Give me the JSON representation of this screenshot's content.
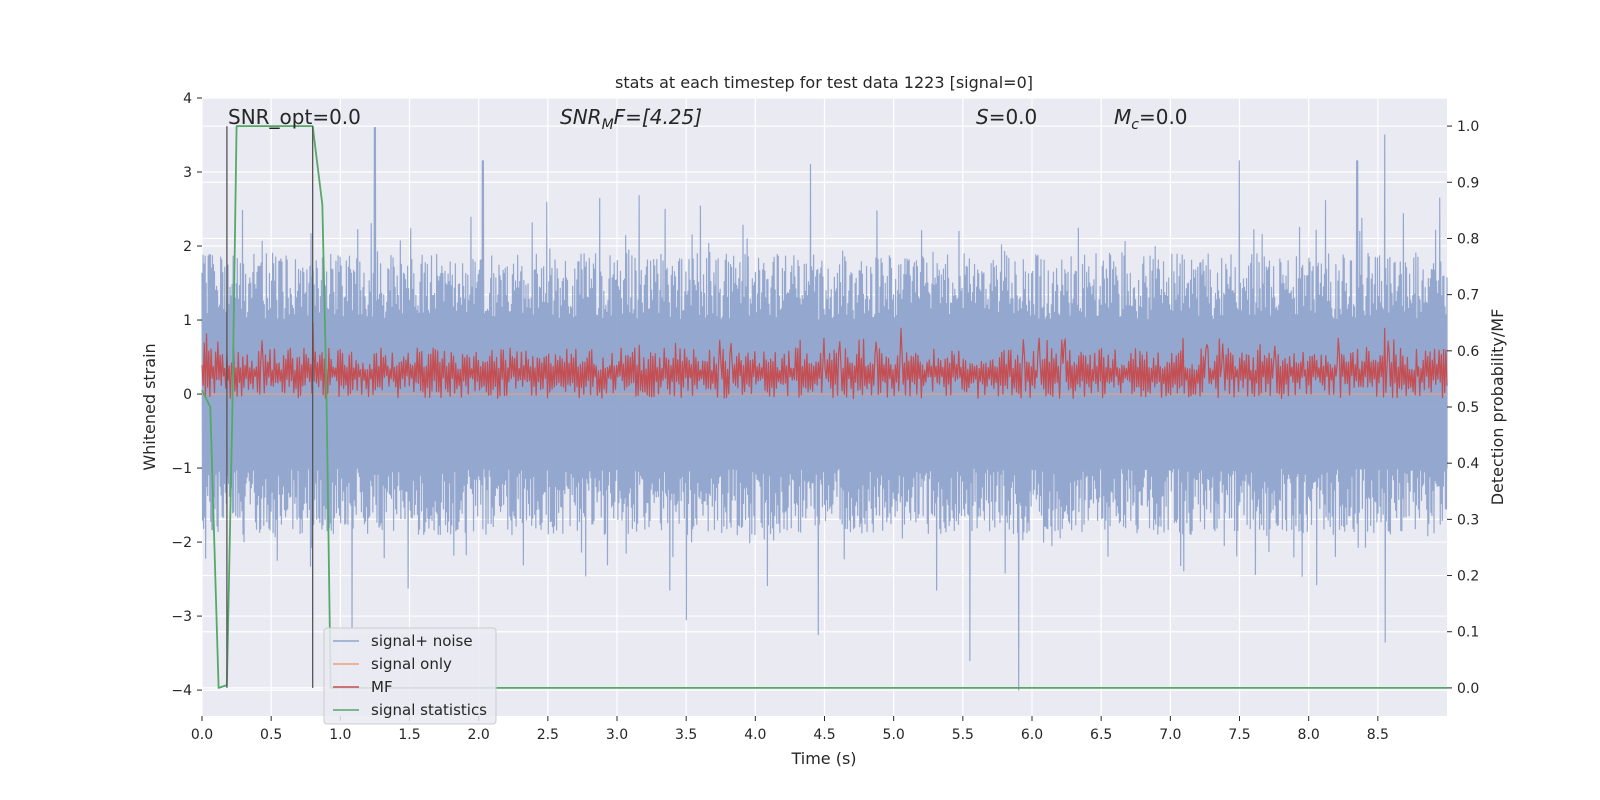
{
  "chart_data": {
    "type": "line",
    "title": "stats at each timestep for test data 1223 [signal=0]",
    "xlabel": "Time (s)",
    "ylabel_left": "Whitened strain",
    "ylabel_right": "Detection probability/MF",
    "xlim": [
      0.0,
      9.0
    ],
    "ylim_left": [
      -4.35,
      4.0
    ],
    "ylim_right": [
      -0.05,
      1.05
    ],
    "xticks": [
      0.0,
      0.5,
      1.0,
      1.5,
      2.0,
      2.5,
      3.0,
      3.5,
      4.0,
      4.5,
      5.0,
      5.5,
      6.0,
      6.5,
      7.0,
      7.5,
      8.0,
      8.5
    ],
    "xtick_labels": [
      "0.0",
      "0.5",
      "1.0",
      "1.5",
      "2.0",
      "2.5",
      "3.0",
      "3.5",
      "4.0",
      "4.5",
      "5.0",
      "5.5",
      "6.0",
      "6.5",
      "7.0",
      "7.5",
      "8.0",
      "8.5"
    ],
    "yticks_left": [
      -4,
      -3,
      -2,
      -1,
      0,
      1,
      2,
      3,
      4
    ],
    "ytick_labels_left": [
      "−4",
      "−3",
      "−2",
      "−1",
      "0",
      "1",
      "2",
      "3",
      "4"
    ],
    "yticks_right": [
      0.0,
      0.1,
      0.2,
      0.3,
      0.4,
      0.5,
      0.6,
      0.7,
      0.8,
      0.9,
      1.0
    ],
    "ytick_labels_right": [
      "0.0",
      "0.1",
      "0.2",
      "0.3",
      "0.4",
      "0.5",
      "0.6",
      "0.7",
      "0.8",
      "0.9",
      "1.0"
    ],
    "grid": true,
    "legend_position": "bottom-left",
    "annotations": {
      "snr_opt": "SNR_opt=0.0",
      "snr_mf_main": "SNR",
      "snr_mf_sub": "M",
      "snr_mf_rest": "F=[4.25]",
      "s_italic": "S",
      "s_rest": "=0.0",
      "mc_main": "M",
      "mc_sub": "c",
      "mc_rest": "=0.0"
    },
    "vertical_markers_x": [
      0.18,
      0.8
    ],
    "vertical_markers_ylim_right": [
      0.0,
      1.0
    ],
    "series": [
      {
        "name": "signal+ noise",
        "color": "#8fa4cc",
        "axis": "left",
        "style": "noise",
        "x_range": [
          0.0,
          9.0
        ],
        "n_points": 1200,
        "seed": 1223,
        "typical_upper": [
          1.0,
          1.9
        ],
        "typical_lower": [
          -1.0,
          -1.9
        ],
        "notable_peaks": [
          {
            "x": 1.25,
            "y": 3.6
          },
          {
            "x": 2.03,
            "y": 3.15
          },
          {
            "x": 4.4,
            "y": 3.1
          },
          {
            "x": 8.55,
            "y": 3.5
          },
          {
            "x": 8.35,
            "y": 3.15
          },
          {
            "x": 7.5,
            "y": 3.15
          },
          {
            "x": 5.55,
            "y": -3.6
          },
          {
            "x": 5.9,
            "y": -4.0
          },
          {
            "x": 4.45,
            "y": -3.25
          },
          {
            "x": 3.5,
            "y": -3.05
          },
          {
            "x": 8.55,
            "y": -3.35
          },
          {
            "x": 1.08,
            "y": -3.15
          }
        ]
      },
      {
        "name": "signal only",
        "color": "#e8a07e",
        "axis": "left",
        "style": "flat",
        "y": 0.0
      },
      {
        "name": "MF",
        "color": "#c44e52",
        "axis": "right",
        "style": "band",
        "x_range": [
          0.0,
          9.0
        ],
        "n_points": 1100,
        "seed": 42,
        "band": [
          0.515,
          0.605
        ],
        "notable_peaks": [
          {
            "x": 0.03,
            "y": 0.63
          },
          {
            "x": 0.8,
            "y": 0.65
          },
          {
            "x": 5.05,
            "y": 0.64
          },
          {
            "x": 8.55,
            "y": 0.64
          }
        ]
      },
      {
        "name": "signal statistics",
        "color": "#55a868",
        "axis": "right",
        "style": "polyline",
        "x": [
          0.0,
          0.06,
          0.12,
          0.18,
          0.22,
          0.25,
          0.3,
          0.5,
          0.7,
          0.8,
          0.87,
          0.9,
          0.93,
          1.0,
          9.0
        ],
        "y": [
          0.53,
          0.5,
          0.0,
          0.005,
          0.5,
          1.0,
          1.0,
          1.0,
          1.0,
          1.0,
          0.86,
          0.52,
          0.0,
          0.0,
          0.0
        ]
      }
    ]
  }
}
